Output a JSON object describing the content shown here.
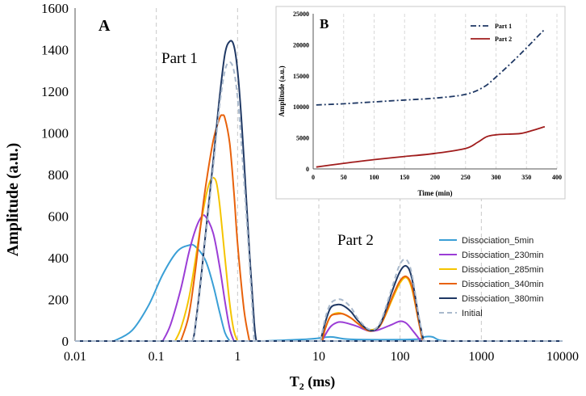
{
  "colors": {
    "axis": "#555555",
    "grid": "#c8c8c8",
    "part1": "#1f3864",
    "part2": "#a01c1c"
  },
  "chart_data": [
    {
      "panel_label": "A",
      "type": "line",
      "xscale": "log",
      "xlabel": "T",
      "xlabel_sub": "2",
      "xlabel_unit": " (ms)",
      "ylabel": "Amplitude (a.u.)",
      "xlim": [
        0.01,
        10000
      ],
      "ylim": [
        0,
        1600
      ],
      "x_ticks": [
        0.01,
        0.1,
        1,
        10,
        100,
        1000,
        10000
      ],
      "x_tick_labels": [
        "0.01",
        "0.1",
        "1",
        "10",
        "100",
        "1000",
        "10000"
      ],
      "y_ticks": [
        0,
        200,
        400,
        600,
        800,
        1000,
        1200,
        1400,
        1600
      ],
      "y_tick_labels": [
        "0",
        "200",
        "400",
        "600",
        "800",
        "1000",
        "1200",
        "1400",
        "1600"
      ],
      "grid": "vertical dashed at x ticks",
      "annotations": [
        {
          "text": "Part 1",
          "x": 0.55,
          "y": 1370
        },
        {
          "text": "Part 2",
          "x": 25,
          "y": 480
        }
      ],
      "legend_position": "right",
      "series": [
        {
          "name": "Dissociation_5min",
          "color": "#3a9fd6",
          "style": "solid",
          "peaks": [
            {
              "x": [
                0.03,
                0.05,
                0.08,
                0.12,
                0.18,
                0.25,
                0.3,
                0.4,
                0.5,
                0.6,
                0.7,
                0.8
              ],
              "y": [
                0,
                50,
                170,
                320,
                430,
                460,
                455,
                390,
                270,
                140,
                40,
                0
              ]
            },
            {
              "x": [
                2,
                8,
                14,
                25,
                150,
                200,
                250,
                300,
                400
              ],
              "y": [
                0,
                10,
                20,
                8,
                8,
                20,
                20,
                5,
                0
              ]
            }
          ]
        },
        {
          "name": "Dissociation_230min",
          "color": "#9b3dd6",
          "style": "solid",
          "peaks": [
            {
              "x": [
                0.12,
                0.15,
                0.2,
                0.25,
                0.3,
                0.35,
                0.4,
                0.5,
                0.6,
                0.7,
                0.8,
                0.9
              ],
              "y": [
                0,
                80,
                250,
                420,
                530,
                590,
                600,
                520,
                360,
                190,
                60,
                0
              ]
            },
            {
              "x": [
                11,
                12,
                14,
                17,
                20,
                25,
                30,
                40,
                50,
                60,
                80,
                100,
                120,
                150,
                180
              ],
              "y": [
                0,
                30,
                70,
                90,
                90,
                80,
                70,
                50,
                50,
                60,
                80,
                95,
                85,
                40,
                0
              ]
            }
          ]
        },
        {
          "name": "Dissociation_285min",
          "color": "#f5c400",
          "style": "solid",
          "peaks": [
            {
              "x": [
                0.17,
                0.2,
                0.25,
                0.3,
                0.35,
                0.4,
                0.45,
                0.5,
                0.55,
                0.6,
                0.7,
                0.8,
                0.9,
                1.0
              ],
              "y": [
                0,
                60,
                200,
                380,
                550,
                680,
                760,
                785,
                760,
                660,
                400,
                180,
                50,
                0
              ]
            },
            {
              "x": [
                11,
                12,
                14,
                17,
                20,
                25,
                30,
                40,
                50,
                60,
                80,
                100,
                120,
                140,
                170,
                190
              ],
              "y": [
                0,
                60,
                120,
                135,
                130,
                110,
                85,
                55,
                60,
                90,
                200,
                280,
                305,
                250,
                90,
                0
              ]
            }
          ]
        },
        {
          "name": "Dissociation_340min",
          "color": "#e8620c",
          "style": "solid",
          "peaks": [
            {
              "x": [
                0.2,
                0.25,
                0.3,
                0.35,
                0.4,
                0.5,
                0.6,
                0.65,
                0.7,
                0.8,
                0.9,
                1.0,
                1.2,
                1.4
              ],
              "y": [
                0,
                120,
                330,
                550,
                730,
                960,
                1070,
                1085,
                1070,
                950,
                720,
                470,
                150,
                0
              ]
            },
            {
              "x": [
                11,
                12,
                14,
                17,
                20,
                25,
                30,
                40,
                50,
                60,
                80,
                100,
                120,
                140,
                170,
                190
              ],
              "y": [
                0,
                60,
                120,
                130,
                130,
                110,
                85,
                50,
                55,
                90,
                210,
                290,
                310,
                260,
                90,
                0
              ]
            }
          ]
        },
        {
          "name": "Dissociation_380min",
          "color": "#1f3864",
          "style": "solid",
          "peaks": [
            {
              "x": [
                0.28,
                0.3,
                0.35,
                0.4,
                0.5,
                0.6,
                0.7,
                0.8,
                0.9,
                1.0,
                1.1,
                1.2,
                1.4,
                1.6,
                1.7
              ],
              "y": [
                0,
                60,
                280,
                500,
                860,
                1170,
                1380,
                1440,
                1420,
                1300,
                1100,
                870,
                430,
                90,
                0
              ]
            },
            {
              "x": [
                10.5,
                12,
                14,
                17,
                20,
                25,
                30,
                40,
                50,
                60,
                80,
                100,
                120,
                140,
                170,
                195
              ],
              "y": [
                0,
                90,
                160,
                175,
                170,
                140,
                100,
                55,
                55,
                100,
                240,
                335,
                360,
                300,
                110,
                0
              ]
            }
          ]
        },
        {
          "name": "Initial",
          "color": "#a9b9cc",
          "style": "dashed",
          "peaks": [
            {
              "x": [
                0.28,
                0.3,
                0.35,
                0.4,
                0.5,
                0.6,
                0.7,
                0.8,
                0.9,
                1.0,
                1.1,
                1.2,
                1.4,
                1.6
              ],
              "y": [
                0,
                50,
                260,
                480,
                830,
                1130,
                1300,
                1340,
                1300,
                1170,
                980,
                770,
                380,
                0
              ]
            },
            {
              "x": [
                10.5,
                12,
                14,
                17,
                20,
                25,
                30,
                40,
                50,
                60,
                80,
                100,
                120,
                140,
                170,
                195
              ],
              "y": [
                0,
                110,
                180,
                200,
                195,
                160,
                110,
                60,
                60,
                110,
                260,
                370,
                390,
                320,
                120,
                0
              ]
            }
          ]
        }
      ]
    },
    {
      "panel_label": "B",
      "type": "line",
      "xlabel": "Time (min)",
      "ylabel": "Amplitude (a.u.)",
      "xlim": [
        0,
        400
      ],
      "ylim": [
        0,
        25000
      ],
      "x_ticks": [
        0,
        50,
        100,
        150,
        200,
        250,
        300,
        350,
        400
      ],
      "x_tick_labels": [
        "0",
        "50",
        "100",
        "150",
        "200",
        "250",
        "300",
        "350",
        "400"
      ],
      "y_ticks": [
        0,
        5000,
        10000,
        15000,
        20000,
        25000
      ],
      "y_tick_labels": [
        "0",
        "5000",
        "10000",
        "15000",
        "20000",
        "25000"
      ],
      "grid": "vertical dashed",
      "legend_position": "top-left",
      "series": [
        {
          "name": "Part 1",
          "color": "#1f3864",
          "style": "dashdot",
          "x": [
            5,
            50,
            100,
            150,
            200,
            250,
            280,
            300,
            320,
            340,
            360,
            380
          ],
          "y": [
            10300,
            10500,
            10800,
            11100,
            11400,
            12000,
            13200,
            14800,
            16600,
            18500,
            20500,
            22500
          ]
        },
        {
          "name": "Part 2",
          "color": "#a01c1c",
          "style": "solid",
          "x": [
            5,
            50,
            100,
            150,
            200,
            250,
            270,
            285,
            300,
            320,
            340,
            360,
            380
          ],
          "y": [
            300,
            900,
            1500,
            2000,
            2500,
            3300,
            4300,
            5200,
            5500,
            5600,
            5700,
            6200,
            6800
          ]
        }
      ]
    }
  ]
}
